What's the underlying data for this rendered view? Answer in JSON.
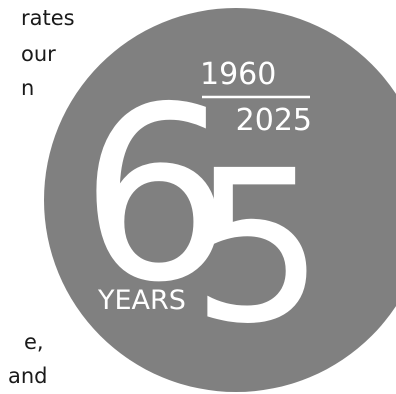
{
  "background_text": {
    "fragments": [
      "rates",
      "our",
      "n",
      "e,",
      "and"
    ],
    "color": "#1a1a1a"
  },
  "emblem": {
    "big_numeral_first": "6",
    "big_numeral_second": "5",
    "start_year": "1960",
    "end_year": "2025",
    "unit_label": "YEARS",
    "circle_color": "#808080",
    "ink_color": "#ffffff"
  }
}
